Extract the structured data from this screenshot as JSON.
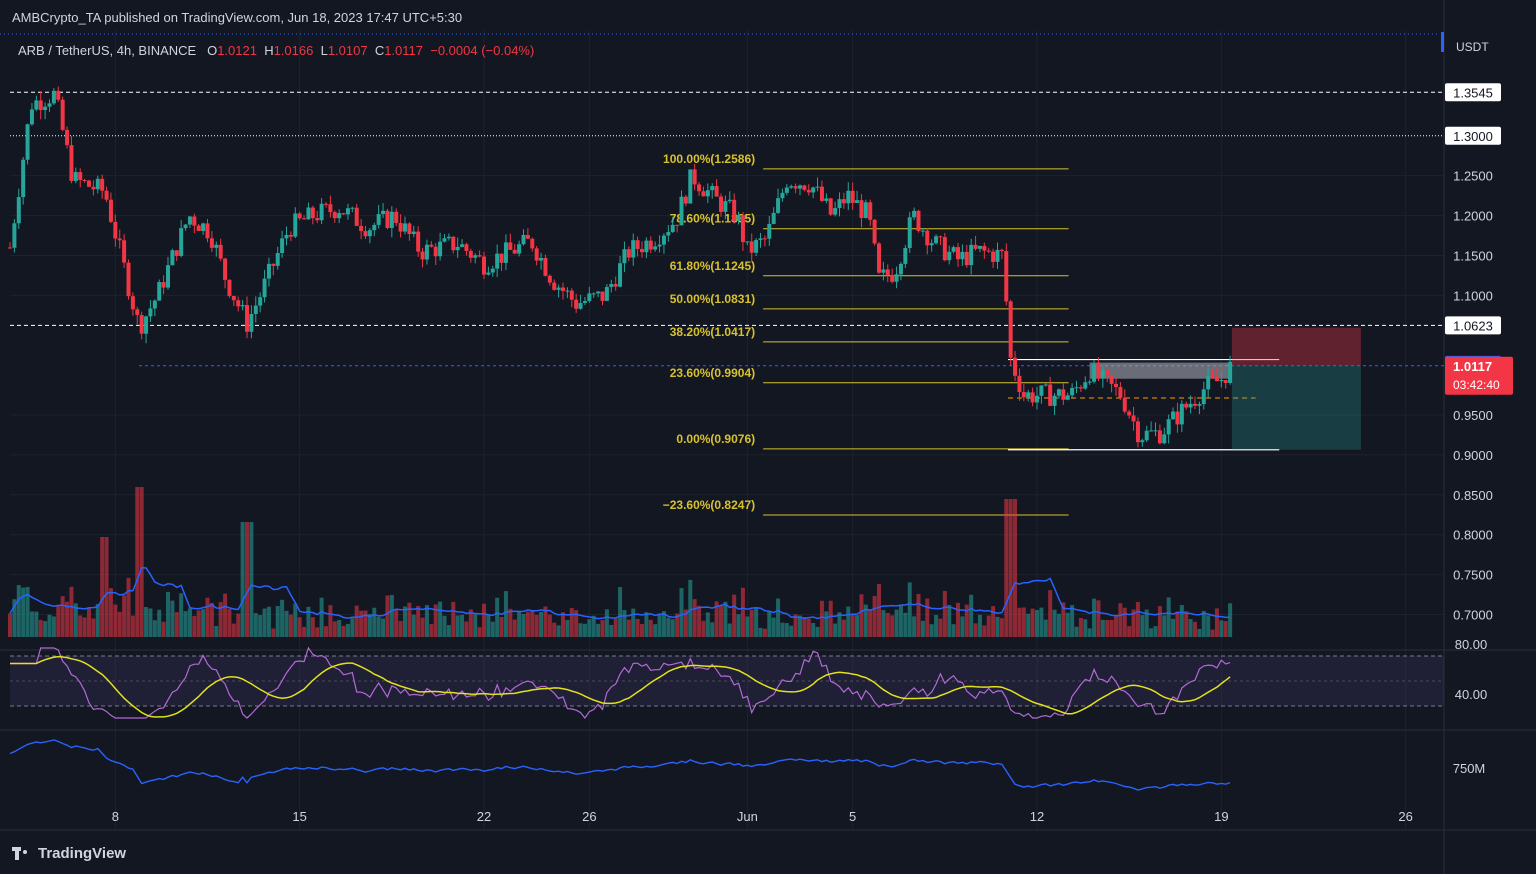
{
  "header": {
    "publisher": "AMBCrypto_TA published on TradingView.com, Jun 18, 2023 17:47 UTC+5:30",
    "symbol": "ARB / TetherUS, 4h, BINANCE",
    "o_label": "O",
    "o_value": "1.0121",
    "h_label": "H",
    "h_value": "1.0166",
    "l_label": "L",
    "l_value": "1.0107",
    "c_label": "C",
    "c_value": "1.0117",
    "change": "−0.0004 (−0.04%)"
  },
  "currency_label": "USDT",
  "branding": "TradingView",
  "colors": {
    "background": "#131722",
    "up": "#26a69a",
    "down": "#f23645",
    "fib": "#d8c22c",
    "rsi": "#b36ad6",
    "rsi_ma": "#e2e21b",
    "volume_ma": "#2962ff",
    "obv": "#2962ff",
    "price_badge": "#2962ff",
    "last_badge": "#f23645"
  },
  "chart_data": {
    "type": "candlestick",
    "symbol": "ARB / TetherUS",
    "interval": "4h",
    "exchange": "BINANCE",
    "y_range": [
      0.668,
      1.395
    ],
    "y_ticks": [
      "1.2500",
      "1.2000",
      "1.1500",
      "1.1000",
      "0.9500",
      "0.9000",
      "0.8500",
      "0.8000",
      "0.7500",
      "0.7000"
    ],
    "y_tick_values": [
      1.25,
      1.2,
      1.15,
      1.1,
      0.95,
      0.9,
      0.85,
      0.8,
      0.75,
      0.7
    ],
    "x_ticks": [
      "8",
      "15",
      "22",
      "26",
      "Jun",
      "5",
      "12",
      "19",
      "26"
    ],
    "x_tick_positions": [
      8,
      15,
      22,
      26,
      32,
      36,
      43,
      50,
      57
    ],
    "x_range": [
      4.0,
      58.0
    ],
    "anchors": [
      {
        "day": 4.0,
        "price": 1.16
      },
      {
        "day": 4.8,
        "price": 1.34
      },
      {
        "day": 5.7,
        "price": 1.352
      },
      {
        "day": 6.4,
        "price": 1.245
      },
      {
        "day": 7.6,
        "price": 1.23
      },
      {
        "day": 8.9,
        "price": 1.06
      },
      {
        "day": 9.6,
        "price": 1.1
      },
      {
        "day": 10.8,
        "price": 1.2
      },
      {
        "day": 11.6,
        "price": 1.18
      },
      {
        "day": 12.2,
        "price": 1.12
      },
      {
        "day": 13.0,
        "price": 1.065
      },
      {
        "day": 13.5,
        "price": 1.1
      },
      {
        "day": 14.6,
        "price": 1.185
      },
      {
        "day": 15.5,
        "price": 1.2
      },
      {
        "day": 16.5,
        "price": 1.21
      },
      {
        "day": 17.6,
        "price": 1.185
      },
      {
        "day": 18.6,
        "price": 1.2
      },
      {
        "day": 19.6,
        "price": 1.155
      },
      {
        "day": 21.0,
        "price": 1.165
      },
      {
        "day": 22.0,
        "price": 1.14
      },
      {
        "day": 23.0,
        "price": 1.155
      },
      {
        "day": 23.8,
        "price": 1.168
      },
      {
        "day": 24.6,
        "price": 1.12
      },
      {
        "day": 25.5,
        "price": 1.09
      },
      {
        "day": 26.6,
        "price": 1.1
      },
      {
        "day": 27.5,
        "price": 1.155
      },
      {
        "day": 28.4,
        "price": 1.17
      },
      {
        "day": 29.3,
        "price": 1.195
      },
      {
        "day": 29.9,
        "price": 1.25
      },
      {
        "day": 30.8,
        "price": 1.22
      },
      {
        "day": 31.6,
        "price": 1.2
      },
      {
        "day": 32.0,
        "price": 1.155
      },
      {
        "day": 32.7,
        "price": 1.17
      },
      {
        "day": 33.5,
        "price": 1.245
      },
      {
        "day": 34.4,
        "price": 1.24
      },
      {
        "day": 35.2,
        "price": 1.2
      },
      {
        "day": 35.8,
        "price": 1.225
      },
      {
        "day": 36.6,
        "price": 1.2
      },
      {
        "day": 37.0,
        "price": 1.12
      },
      {
        "day": 37.6,
        "price": 1.13
      },
      {
        "day": 38.3,
        "price": 1.2
      },
      {
        "day": 39.1,
        "price": 1.165
      },
      {
        "day": 40.0,
        "price": 1.145
      },
      {
        "day": 40.8,
        "price": 1.155
      },
      {
        "day": 41.7,
        "price": 1.15
      },
      {
        "day": 42.0,
        "price": 1.02
      },
      {
        "day": 42.5,
        "price": 0.975
      },
      {
        "day": 43.3,
        "price": 0.975
      },
      {
        "day": 44.3,
        "price": 0.975
      },
      {
        "day": 45.0,
        "price": 1.005
      },
      {
        "day": 46.2,
        "price": 0.975
      },
      {
        "day": 46.9,
        "price": 0.925
      },
      {
        "day": 47.7,
        "price": 0.928
      },
      {
        "day": 48.5,
        "price": 0.955
      },
      {
        "day": 49.4,
        "price": 0.985
      },
      {
        "day": 50.0,
        "price": 0.995
      },
      {
        "day": 50.4,
        "price": 1.012
      }
    ],
    "fib_retracement": [
      {
        "label": "100.00%(1.2586)",
        "value": 1.2586
      },
      {
        "label": "78.60%(1.1835)",
        "value": 1.1835
      },
      {
        "label": "61.80%(1.1245)",
        "value": 1.1245
      },
      {
        "label": "50.00%(1.0831)",
        "value": 1.0831
      },
      {
        "label": "38.20%(1.0417)",
        "value": 1.0417
      },
      {
        "label": "23.60%(0.9904)",
        "value": 0.9904
      },
      {
        "label": "0.00%(0.9076)",
        "value": 0.9076
      },
      {
        "label": "−23.60%(0.8247)",
        "value": 0.8247
      }
    ],
    "horizontal_levels": [
      {
        "label": "1.3545",
        "value": 1.3545,
        "style": "dashed"
      },
      {
        "label": "1.3000",
        "value": 1.3,
        "style": "dotted"
      },
      {
        "label": "1.0623",
        "value": 1.0623,
        "style": "dashed"
      }
    ],
    "current_price": {
      "label": "1.0117",
      "value": 1.0117,
      "countdown": "03:42:40"
    },
    "blue_level": {
      "label": "1.0129",
      "value": 1.0129
    },
    "range_box": {
      "top": 1.0195,
      "bottom": 0.9065,
      "mid": 0.9713
    },
    "short_position": {
      "entry": 1.0117,
      "stop": 1.0595,
      "target": 0.9065
    },
    "rsi": {
      "upper_label": "80.00",
      "lower_label": "40.00",
      "upper": 80,
      "lower": 40
    },
    "obv_label": "750M"
  }
}
